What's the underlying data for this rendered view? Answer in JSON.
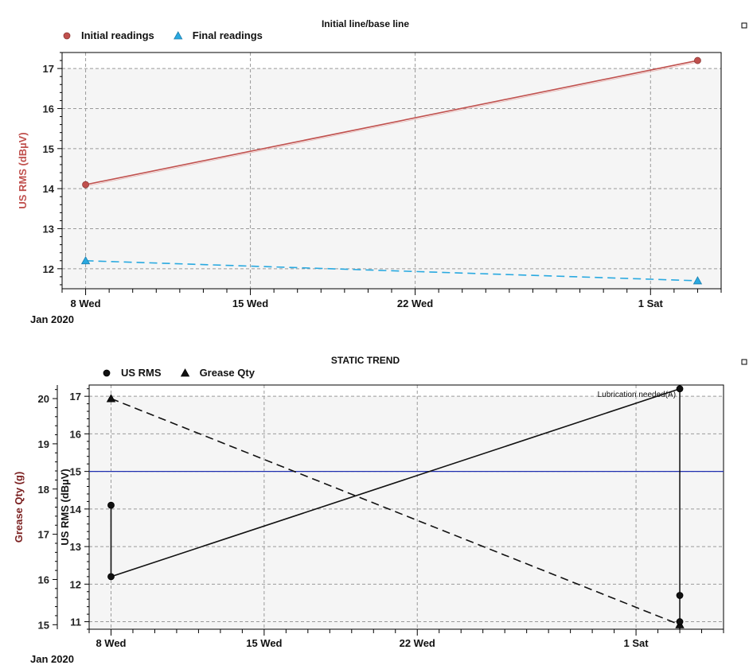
{
  "chart_data": [
    {
      "type": "line",
      "title": "Initial line/base line",
      "ylabel": "US RMS (dBµV)",
      "ylabel_color": "#c0504d",
      "xlim": [
        "2020-01-07",
        "2020-02-04"
      ],
      "ylim": [
        11.5,
        17.4
      ],
      "yticks": [
        12,
        13,
        14,
        15,
        16,
        17
      ],
      "xticks": [
        {
          "date": "2020-01-08",
          "label": "8 Wed"
        },
        {
          "date": "2020-01-15",
          "label": "15 Wed"
        },
        {
          "date": "2020-01-22",
          "label": "22 Wed"
        },
        {
          "date": "2020-02-01",
          "label": "1 Sat"
        }
      ],
      "x_sublabel": "Jan 2020",
      "grid": true,
      "plot_background": "#f5f5f5",
      "legend_position": "top-left",
      "series": [
        {
          "name": "Initial readings",
          "marker": "circle",
          "line": "solid",
          "color": "#c0504d",
          "points": [
            {
              "x": "2020-01-08",
              "y": 14.1
            },
            {
              "x": "2020-02-03",
              "y": 17.2
            }
          ]
        },
        {
          "name": "Final readings",
          "marker": "triangle",
          "line": "dashed",
          "color": "#29a9e0",
          "points": [
            {
              "x": "2020-01-08",
              "y": 12.2
            },
            {
              "x": "2020-02-03",
              "y": 11.7
            }
          ]
        }
      ]
    },
    {
      "type": "line",
      "title": "STATIC TREND",
      "ylabel": "US RMS (dBµV)",
      "y2label": "Grease Qty (g)",
      "y2label_color": "#7a1f1f",
      "xlim": [
        "2020-01-07",
        "2020-02-05"
      ],
      "ylim": [
        10.8,
        17.3
      ],
      "y2lim": [
        14.9,
        20.3
      ],
      "yticks": [
        11,
        12,
        13,
        14,
        15,
        16,
        17
      ],
      "y2ticks": [
        15,
        16,
        17,
        18,
        19,
        20
      ],
      "xticks": [
        {
          "date": "2020-01-08",
          "label": "8 Wed"
        },
        {
          "date": "2020-01-15",
          "label": "15 Wed"
        },
        {
          "date": "2020-01-22",
          "label": "22 Wed"
        },
        {
          "date": "2020-02-01",
          "label": "1 Sat"
        }
      ],
      "x_sublabel": "Jan 2020",
      "grid": true,
      "plot_background": "#f5f5f5",
      "legend_position": "top-left",
      "threshold": {
        "y": 15,
        "color": "#1f2fb0"
      },
      "vertical_marker": {
        "x": "2020-02-03",
        "label": "Lubrication needed(A)"
      },
      "series": [
        {
          "name": "US RMS",
          "marker": "circle",
          "line": "solid",
          "color": "#111111",
          "points": [
            {
              "x": "2020-01-08",
              "y": 14.1
            },
            {
              "x": "2020-01-08",
              "y": 12.2
            },
            {
              "x": "2020-02-03",
              "y": 17.2
            }
          ]
        },
        {
          "name": "Grease Qty",
          "marker": "triangle",
          "line": "dashed",
          "color": "#111111",
          "axis": "right",
          "points": [
            {
              "x": "2020-01-08",
              "y": 20.0
            },
            {
              "x": "2020-02-03",
              "y": 15.0
            }
          ]
        },
        {
          "name": "",
          "marker": "circle",
          "line": "none",
          "color": "#111111",
          "points": [
            {
              "x": "2020-02-03",
              "y": 11.7
            },
            {
              "x": "2020-02-03",
              "y": 11.0
            }
          ]
        }
      ]
    }
  ]
}
